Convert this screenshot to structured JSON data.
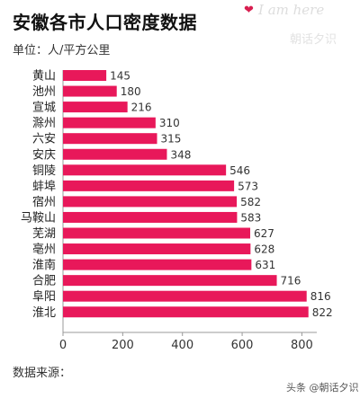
{
  "header": {
    "title": "安徽各市人口密度数据",
    "unit": "单位：人/平方公里"
  },
  "watermark": {
    "heart": "❤",
    "script": "I am here",
    "brand": "朝话夕识"
  },
  "source": "数据来源：",
  "footer": "头条 @朝话夕识",
  "colors": {
    "bar": "#e8185a",
    "axis": "#999999",
    "grid": "#eeeeee"
  },
  "chart_data": {
    "type": "bar",
    "orientation": "horizontal",
    "title": "安徽各市人口密度数据",
    "subtitle": "单位：人/平方公里",
    "categories": [
      "黄山",
      "池州",
      "宣城",
      "滁州",
      "六安",
      "安庆",
      "铜陵",
      "蚌埠",
      "宿州",
      "马鞍山",
      "芜湖",
      "亳州",
      "淮南",
      "合肥",
      "阜阳",
      "淮北"
    ],
    "values": [
      145,
      180,
      216,
      310,
      315,
      348,
      546,
      573,
      582,
      583,
      627,
      628,
      631,
      716,
      816,
      822
    ],
    "xlim": [
      0,
      850
    ],
    "xticks": [
      0,
      200,
      400,
      600,
      800
    ],
    "xlabel": "",
    "ylabel": "",
    "data_labels": true,
    "grid": false,
    "legend": "none"
  }
}
